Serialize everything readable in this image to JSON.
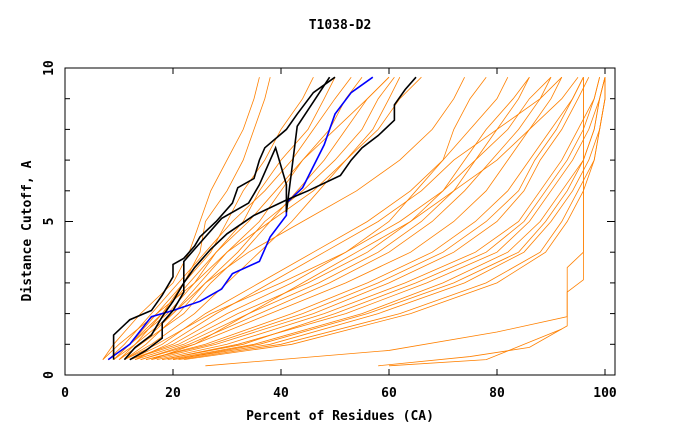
{
  "chart_data": {
    "type": "line",
    "title": "T1038-D2",
    "xlabel": "Percent of Residues (CA)",
    "ylabel": "Distance Cutoff, A",
    "xlim": [
      0,
      100
    ],
    "ylim": [
      0,
      10
    ],
    "xticks": [
      "0",
      "20",
      "40",
      "60",
      "80",
      "100"
    ],
    "xtick_values": [
      0,
      20,
      40,
      60,
      80,
      100
    ],
    "yticks": [
      "0",
      "5",
      "10"
    ],
    "ytick_values": [
      0,
      5,
      10
    ],
    "grid": false,
    "colors": {
      "others": "#ff8000",
      "highlight": "#0000ff",
      "reference": "#000000"
    },
    "y_levels": [
      0.5,
      1,
      2,
      3,
      4,
      5,
      6,
      7,
      8,
      9,
      9.7
    ],
    "series": [
      {
        "name": "highlight",
        "color": "#0000ff",
        "points": [
          [
            8,
            0.5
          ],
          [
            12,
            1
          ],
          [
            16,
            1.9
          ],
          [
            20,
            2.1
          ],
          [
            25,
            2.4
          ],
          [
            29,
            2.8
          ],
          [
            31,
            3.3
          ],
          [
            36,
            3.7
          ],
          [
            38,
            4.5
          ],
          [
            41,
            5.2
          ],
          [
            41,
            5.6
          ],
          [
            44,
            6.1
          ],
          [
            48,
            7.5
          ],
          [
            50,
            8.5
          ],
          [
            53,
            9.2
          ],
          [
            57,
            9.7
          ]
        ]
      },
      {
        "name": "reference-1",
        "color": "#000000",
        "points": [
          [
            11,
            0.5
          ],
          [
            13,
            0.9
          ],
          [
            16,
            1.3
          ],
          [
            18,
            1.9
          ],
          [
            20,
            2.4
          ],
          [
            22,
            3
          ],
          [
            24,
            3.5
          ],
          [
            27,
            4.1
          ],
          [
            30,
            4.6
          ],
          [
            35,
            5.2
          ],
          [
            41,
            5.7
          ],
          [
            45,
            6
          ],
          [
            51,
            6.5
          ],
          [
            53,
            7
          ],
          [
            55,
            7.4
          ],
          [
            58,
            7.8
          ],
          [
            61,
            8.3
          ],
          [
            61,
            8.8
          ],
          [
            63,
            9.3
          ],
          [
            65,
            9.7
          ]
        ]
      },
      {
        "name": "reference-2",
        "color": "#000000",
        "points": [
          [
            9,
            0.5
          ],
          [
            9,
            1.3
          ],
          [
            12,
            1.8
          ],
          [
            16,
            2.1
          ],
          [
            18,
            2.6
          ],
          [
            20,
            3.2
          ],
          [
            20,
            3.6
          ],
          [
            22,
            3.8
          ],
          [
            24,
            4.2
          ],
          [
            25,
            4.5
          ],
          [
            28,
            5
          ],
          [
            31,
            5.6
          ],
          [
            32,
            6.1
          ],
          [
            35,
            6.4
          ],
          [
            36,
            7
          ],
          [
            37,
            7.4
          ],
          [
            41,
            8
          ],
          [
            43,
            8.5
          ],
          [
            46,
            9.2
          ],
          [
            50,
            9.7
          ]
        ]
      },
      {
        "name": "reference-3",
        "color": "#000000",
        "points": [
          [
            12,
            0.5
          ],
          [
            15,
            0.8
          ],
          [
            18,
            1.2
          ],
          [
            18,
            1.7
          ],
          [
            20,
            2.1
          ],
          [
            22,
            2.7
          ],
          [
            22,
            3.7
          ],
          [
            25,
            4.3
          ],
          [
            29,
            5.1
          ],
          [
            34,
            5.6
          ],
          [
            36,
            6.2
          ],
          [
            38,
            7
          ],
          [
            39,
            7.4
          ],
          [
            41,
            6.2
          ],
          [
            41,
            5.3
          ],
          [
            43,
            8.1
          ],
          [
            46,
            8.9
          ],
          [
            49,
            9.7
          ]
        ]
      }
    ],
    "other_models_x_at_levels": [
      [
        7,
        10,
        17,
        22,
        25,
        26,
        30,
        33,
        35,
        37,
        38
      ],
      [
        8,
        12,
        18,
        22,
        27,
        30,
        33,
        37,
        40,
        44,
        46
      ],
      [
        9,
        13,
        20,
        25,
        30,
        36,
        40,
        44,
        49,
        52,
        55
      ],
      [
        10,
        14,
        22,
        27,
        33,
        38,
        43,
        48,
        52,
        56,
        60
      ],
      [
        11,
        16,
        24,
        30,
        36,
        42,
        47,
        52,
        57,
        60,
        62
      ],
      [
        12,
        20,
        30,
        42,
        52,
        60,
        65,
        70,
        72,
        75,
        78
      ],
      [
        13,
        22,
        34,
        47,
        58,
        66,
        72,
        76,
        80,
        84,
        86
      ],
      [
        14,
        24,
        38,
        52,
        64,
        72,
        78,
        82,
        86,
        90,
        92
      ],
      [
        15,
        26,
        42,
        56,
        68,
        76,
        82,
        86,
        90,
        94,
        96
      ],
      [
        16,
        28,
        46,
        60,
        72,
        80,
        85,
        88,
        92,
        95,
        97
      ],
      [
        17,
        30,
        48,
        63,
        76,
        84,
        88,
        92,
        95,
        98,
        99
      ],
      [
        18,
        32,
        52,
        67,
        80,
        86,
        90,
        94,
        97,
        99,
        100
      ],
      [
        19,
        35,
        55,
        70,
        82,
        88,
        92,
        96,
        98,
        99,
        100
      ],
      [
        20,
        38,
        58,
        74,
        85,
        90,
        94,
        97,
        99,
        100,
        100
      ],
      [
        21,
        40,
        62,
        78,
        88,
        92,
        95,
        98,
        99,
        100,
        100
      ],
      [
        12,
        21,
        32,
        45,
        56,
        64,
        70,
        74,
        78,
        83,
        86
      ],
      [
        15,
        27,
        44,
        58,
        70,
        78,
        84,
        87,
        91,
        94,
        96
      ],
      [
        18,
        33,
        50,
        65,
        78,
        85,
        89,
        93,
        96,
        98,
        99
      ],
      [
        20,
        36,
        56,
        72,
        84,
        89,
        93,
        96,
        98,
        99,
        100
      ],
      [
        14,
        23,
        36,
        49,
        60,
        68,
        74,
        79,
        84,
        88,
        90
      ],
      [
        8,
        11,
        16,
        21,
        26,
        31,
        37,
        42,
        46,
        50,
        53
      ],
      [
        9,
        12,
        19,
        24,
        28,
        33,
        36,
        40,
        45,
        48,
        50
      ],
      [
        10,
        13,
        18,
        23,
        28,
        34,
        39,
        44,
        50,
        56,
        60
      ],
      [
        7,
        9,
        14,
        20,
        23,
        25,
        27,
        30,
        33,
        35,
        36
      ],
      [
        11,
        15,
        21,
        26,
        32,
        37,
        44,
        50,
        55,
        58,
        61
      ],
      [
        10,
        14,
        20,
        26,
        34,
        44,
        54,
        62,
        68,
        72,
        74
      ],
      [
        12,
        18,
        26,
        36,
        46,
        56,
        64,
        70,
        75,
        80,
        82
      ],
      [
        13,
        19,
        28,
        38,
        48,
        58,
        66,
        72,
        80,
        88,
        92
      ],
      [
        16,
        24,
        34,
        44,
        54,
        64,
        72,
        80,
        86,
        92,
        95
      ],
      [
        9,
        12,
        17,
        24,
        30,
        38,
        46,
        52,
        58,
        62,
        66
      ],
      [
        22,
        42,
        64,
        80,
        89,
        93,
        96,
        98,
        99,
        100,
        100
      ],
      [
        11,
        17,
        27,
        40,
        52,
        62,
        70,
        76,
        82,
        86,
        90
      ]
    ],
    "outlier_models": [
      [
        [
          26,
          0.3
        ],
        [
          60,
          0.8
        ],
        [
          80,
          1.4
        ],
        [
          93,
          1.9
        ],
        [
          93,
          3.5
        ],
        [
          96,
          4
        ],
        [
          96,
          9.7
        ]
      ],
      [
        [
          58,
          0.3
        ],
        [
          75,
          0.6
        ],
        [
          86,
          0.9
        ],
        [
          93,
          1.6
        ],
        [
          93,
          2.7
        ],
        [
          96,
          3.1
        ],
        [
          96,
          9.7
        ]
      ],
      [
        [
          60,
          0.3
        ],
        [
          78,
          0.5
        ],
        [
          92,
          1.5
        ]
      ]
    ]
  }
}
